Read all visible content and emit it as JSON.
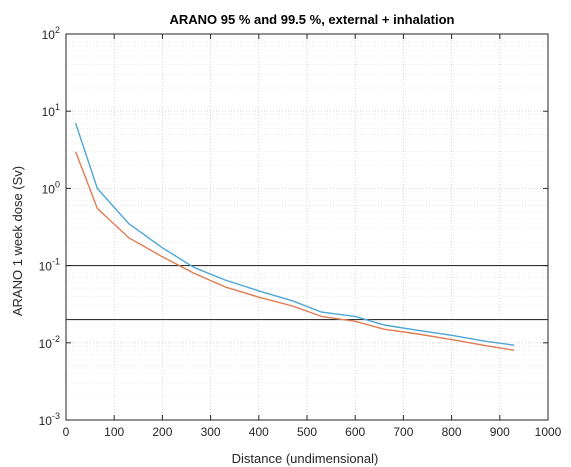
{
  "chart_data": {
    "type": "line",
    "title": "ARANO 95 % and 99.5 %, external + inhalation",
    "xlabel": "Distance (undimensional)",
    "ylabel": "ARANO 1 week dose (Sv)",
    "xlim": [
      0,
      1000
    ],
    "ylim": [
      0.001,
      100
    ],
    "yscale": "log",
    "grid": "major and minor, dotted",
    "x_ticks": [
      "0",
      "100",
      "200",
      "300",
      "400",
      "500",
      "600",
      "700",
      "800",
      "900",
      "1000"
    ],
    "y_ticks": [
      {
        "base": "10",
        "exp": "-3",
        "value": 0.001
      },
      {
        "base": "10",
        "exp": "-2",
        "value": 0.01
      },
      {
        "base": "10",
        "exp": "-1",
        "value": 0.1
      },
      {
        "base": "10",
        "exp": "0",
        "value": 1
      },
      {
        "base": "10",
        "exp": "1",
        "value": 10
      },
      {
        "base": "10",
        "exp": "2",
        "value": 100
      }
    ],
    "series": [
      {
        "color": "#4DA6D6",
        "x": [
          20,
          65,
          130,
          200,
          265,
          330,
          400,
          470,
          530,
          600,
          660,
          730,
          800,
          870,
          930
        ],
        "y": [
          7.0,
          1.0,
          0.35,
          0.17,
          0.095,
          0.065,
          0.047,
          0.035,
          0.025,
          0.022,
          0.017,
          0.0145,
          0.0125,
          0.0105,
          0.0093
        ]
      },
      {
        "color": "#E07B52",
        "x": [
          20,
          65,
          130,
          200,
          265,
          330,
          400,
          470,
          530,
          600,
          660,
          730,
          800,
          870,
          930
        ],
        "y": [
          3.0,
          0.55,
          0.23,
          0.13,
          0.08,
          0.053,
          0.039,
          0.03,
          0.022,
          0.019,
          0.015,
          0.013,
          0.011,
          0.0092,
          0.008
        ]
      }
    ],
    "reference_lines": [
      {
        "y": 0.1,
        "color": "#333333"
      },
      {
        "y": 0.02,
        "color": "#333333"
      }
    ]
  }
}
